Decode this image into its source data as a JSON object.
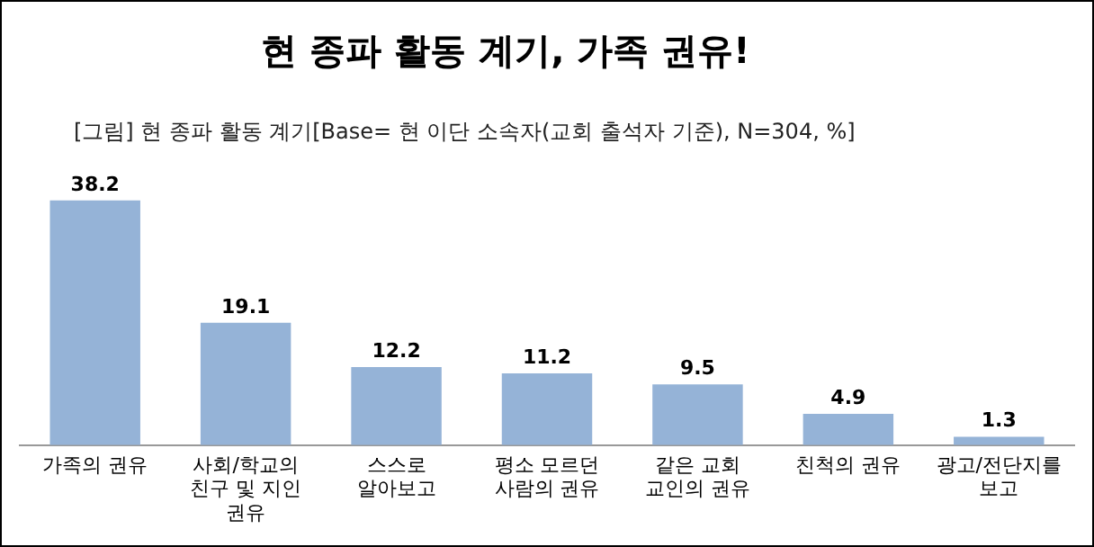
{
  "chart_data": {
    "type": "bar",
    "title": "현 종파 활동 계기, 가족 권유!",
    "subtitle": "[그림] 현 종파 활동 계기[Base= 현 이단 소속자(교회 출석자 기준), N=304, %]",
    "categories": [
      "가족의 권유",
      "사회/학교의 친구 및 지인 권유",
      "스스로 알아보고",
      "평소 모르던 사람의 권유",
      "같은 교회 교인의 권유",
      "친척의 권유",
      "광고/전단지를 보고"
    ],
    "values": [
      38.2,
      19.1,
      12.2,
      11.2,
      9.5,
      4.9,
      1.3
    ],
    "color": "#95b3d7",
    "data_labels": true,
    "grid": false,
    "legend": false
  }
}
